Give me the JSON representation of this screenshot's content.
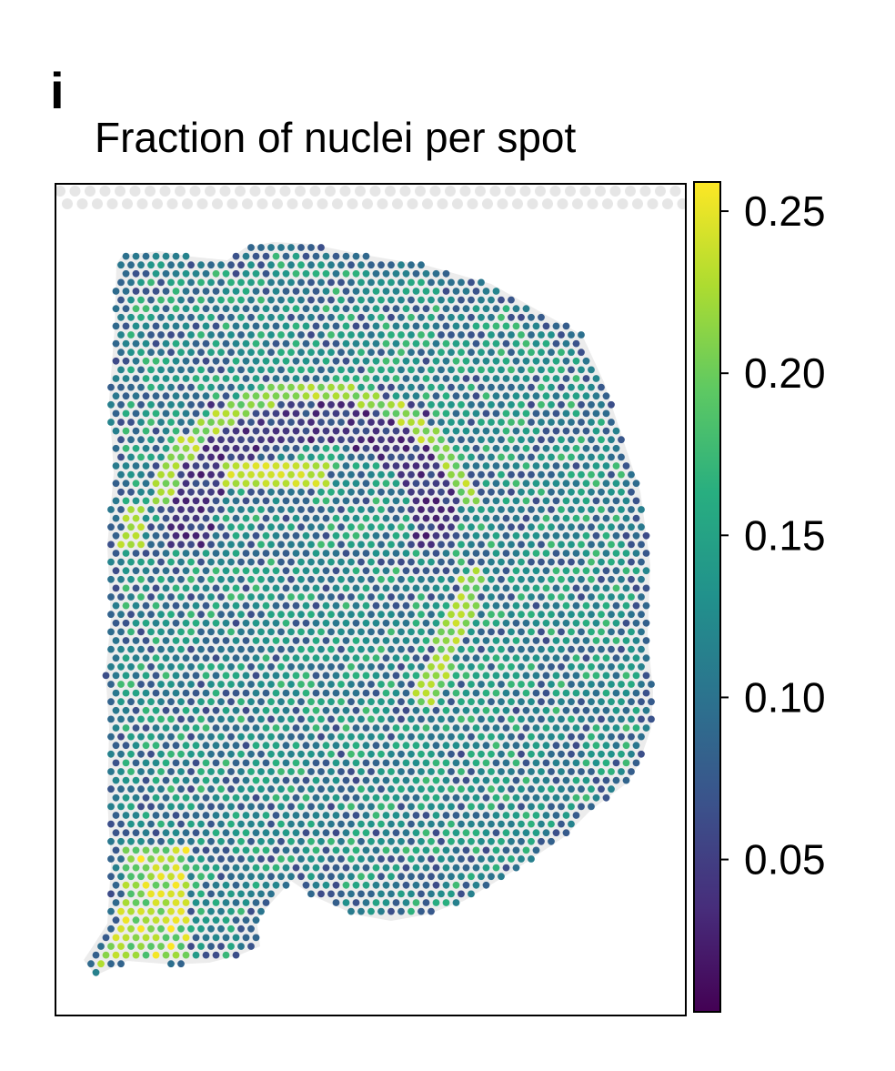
{
  "figure": {
    "panel_letter": "i"
  },
  "chart_data": {
    "type": "heatmap",
    "title": "Fraction of nuclei per spot",
    "xlabel": "",
    "ylabel": "",
    "colormap": "viridis",
    "colorbar": {
      "ticks": [
        "0.25",
        "0.20",
        "0.15",
        "0.10",
        "0.05"
      ],
      "tick_values": [
        0.25,
        0.2,
        0.15,
        0.1,
        0.05
      ],
      "range": [
        0.003,
        0.259
      ]
    },
    "axes_ticks": "none",
    "grid": false,
    "value_regions": [
      {
        "region": "tissue background (most spots)",
        "approx_value": 0.12
      },
      {
        "region": "dark arc below upper cortex",
        "approx_value": 0.02
      },
      {
        "region": "bright band inside arc",
        "approx_value": 0.25
      },
      {
        "region": "left edge bright cluster",
        "approx_value": 0.24
      },
      {
        "region": "right-center diagonal bright streak",
        "approx_value": 0.24
      },
      {
        "region": "outer boundary spots",
        "approx_value": 0.06
      },
      {
        "region": "lower-left corner spots",
        "approx_value": 0.22
      }
    ],
    "colors": {
      "background_spots": "#e6e6e6",
      "tissue": "#ececec",
      "frame": "#000000"
    }
  }
}
